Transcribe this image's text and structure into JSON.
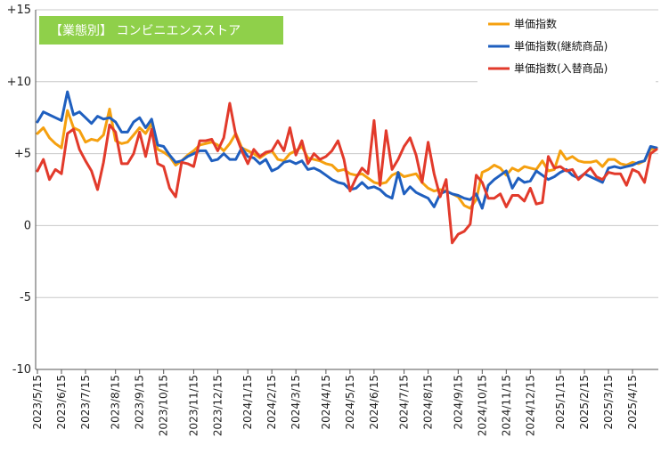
{
  "chart_data": {
    "type": "line",
    "title": "【業態別】 コンビニエンスストア",
    "xlabel": "",
    "ylabel": "",
    "ylim": [
      -10,
      15
    ],
    "yticks": [
      {
        "value": 15,
        "label": "+15"
      },
      {
        "value": 10,
        "label": "+10"
      },
      {
        "value": 5,
        "label": "+5"
      },
      {
        "value": 0,
        "label": "0"
      },
      {
        "value": -5,
        "label": "-5"
      },
      {
        "value": -10,
        "label": "-10"
      }
    ],
    "grid": true,
    "legend_position": "top-right",
    "xticks": [
      {
        "index": 0,
        "label": "2023/5/15"
      },
      {
        "index": 4,
        "label": "2023/6/15"
      },
      {
        "index": 8,
        "label": "2023/7/15"
      },
      {
        "index": 13,
        "label": "2023/8/15"
      },
      {
        "index": 17,
        "label": "2023/9/15"
      },
      {
        "index": 21,
        "label": "2023/10/15"
      },
      {
        "index": 26,
        "label": "2023/11/15"
      },
      {
        "index": 30,
        "label": "2023/12/15"
      },
      {
        "index": 35,
        "label": "2024/1/15"
      },
      {
        "index": 39,
        "label": "2024/2/15"
      },
      {
        "index": 43,
        "label": "2024/3/15"
      },
      {
        "index": 48,
        "label": "2024/4/15"
      },
      {
        "index": 52,
        "label": "2024/5/15"
      },
      {
        "index": 56,
        "label": "2024/6/15"
      },
      {
        "index": 61,
        "label": "2024/7/15"
      },
      {
        "index": 65,
        "label": "2024/8/15"
      },
      {
        "index": 70,
        "label": "2024/9/15"
      },
      {
        "index": 74,
        "label": "2024/10/15"
      },
      {
        "index": 78,
        "label": "2024/11/15"
      },
      {
        "index": 82,
        "label": "2024/12/15"
      },
      {
        "index": 87,
        "label": "2025/1/15"
      },
      {
        "index": 91,
        "label": "2025/2/15"
      },
      {
        "index": 95,
        "label": "2025/3/15"
      },
      {
        "index": 99,
        "label": "2025/4/15"
      }
    ],
    "series": [
      {
        "name": "単価指数",
        "color": "#f5a00f",
        "values": [
          6.4,
          6.8,
          6.1,
          5.7,
          5.4,
          8.0,
          6.8,
          6.6,
          5.8,
          6.0,
          5.9,
          6.3,
          8.1,
          5.9,
          5.7,
          5.8,
          6.3,
          6.8,
          6.4,
          7.1,
          5.3,
          5.1,
          4.8,
          4.2,
          4.5,
          4.9,
          5.2,
          5.6,
          5.7,
          5.8,
          5.6,
          5.2,
          5.7,
          6.4,
          5.4,
          5.2,
          5.0,
          4.7,
          5.0,
          5.2,
          4.6,
          4.5,
          5.0,
          5.2,
          5.5,
          4.7,
          4.6,
          4.5,
          4.3,
          4.2,
          3.8,
          3.9,
          3.6,
          3.5,
          3.6,
          3.3,
          3.0,
          2.9,
          3.0,
          3.5,
          3.7,
          3.4,
          3.5,
          3.6,
          3.0,
          2.6,
          2.4,
          2.5,
          2.4,
          2.2,
          2.0,
          1.4,
          1.2,
          1.8,
          3.7,
          3.9,
          4.2,
          4.0,
          3.5,
          4.0,
          3.8,
          4.1,
          4.0,
          3.9,
          4.5,
          3.8,
          3.9,
          5.2,
          4.6,
          4.8,
          4.5,
          4.4,
          4.4,
          4.5,
          4.1,
          4.6,
          4.6,
          4.3,
          4.2,
          4.4,
          4.3,
          4.5,
          5.3,
          5.4
        ]
      },
      {
        "name": "単価指数(継続商品)",
        "color": "#1f5fbf",
        "values": [
          7.2,
          7.9,
          7.7,
          7.5,
          7.3,
          9.3,
          7.7,
          7.9,
          7.5,
          7.1,
          7.6,
          7.4,
          7.5,
          7.2,
          6.5,
          6.5,
          7.2,
          7.5,
          6.8,
          7.4,
          5.6,
          5.5,
          4.9,
          4.4,
          4.5,
          4.8,
          5.0,
          5.2,
          5.2,
          4.5,
          4.6,
          5.0,
          4.6,
          4.6,
          5.4,
          4.8,
          4.7,
          4.3,
          4.6,
          3.8,
          4.0,
          4.4,
          4.5,
          4.3,
          4.5,
          3.9,
          4.0,
          3.8,
          3.5,
          3.2,
          3.0,
          2.9,
          2.5,
          2.6,
          3.0,
          2.6,
          2.7,
          2.5,
          2.1,
          1.9,
          3.7,
          2.2,
          2.7,
          2.3,
          2.1,
          1.9,
          1.3,
          2.2,
          2.4,
          2.2,
          2.1,
          1.9,
          1.8,
          2.2,
          1.2,
          2.8,
          3.2,
          3.5,
          3.8,
          2.6,
          3.3,
          3.0,
          3.1,
          3.8,
          3.5,
          3.2,
          3.4,
          3.7,
          3.9,
          3.5,
          3.3,
          3.6,
          3.4,
          3.2,
          3.0,
          4.0,
          4.1,
          4.0,
          4.1,
          4.2,
          4.4,
          4.5,
          5.5,
          5.4
        ]
      },
      {
        "name": "単価指数(入替商品)",
        "color": "#e23a2b",
        "values": [
          3.8,
          4.6,
          3.2,
          3.9,
          3.6,
          6.4,
          6.7,
          5.3,
          4.5,
          3.8,
          2.5,
          4.4,
          7.0,
          6.5,
          4.3,
          4.3,
          5.0,
          6.5,
          4.8,
          6.7,
          4.3,
          4.1,
          2.6,
          2.0,
          4.4,
          4.3,
          4.1,
          5.9,
          5.9,
          6.0,
          5.2,
          6.1,
          8.5,
          6.3,
          5.2,
          4.3,
          5.3,
          4.8,
          5.1,
          5.2,
          5.9,
          5.2,
          6.8,
          4.9,
          5.9,
          4.3,
          5.0,
          4.6,
          4.8,
          5.2,
          5.9,
          4.6,
          2.4,
          3.3,
          4.0,
          3.6,
          7.3,
          2.8,
          6.6,
          3.9,
          4.6,
          5.5,
          6.1,
          4.9,
          3.0,
          5.8,
          3.6,
          2.0,
          3.2,
          -1.2,
          -0.6,
          -0.4,
          0.1,
          3.5,
          3.0,
          1.9,
          1.9,
          2.2,
          1.3,
          2.1,
          2.1,
          1.7,
          2.6,
          1.5,
          1.6,
          4.8,
          4.0,
          4.1,
          3.8,
          3.9,
          3.2,
          3.6,
          4.0,
          3.4,
          3.2,
          3.7,
          3.6,
          3.6,
          2.8,
          3.9,
          3.7,
          3.0,
          5.0,
          5.3
        ]
      }
    ]
  }
}
